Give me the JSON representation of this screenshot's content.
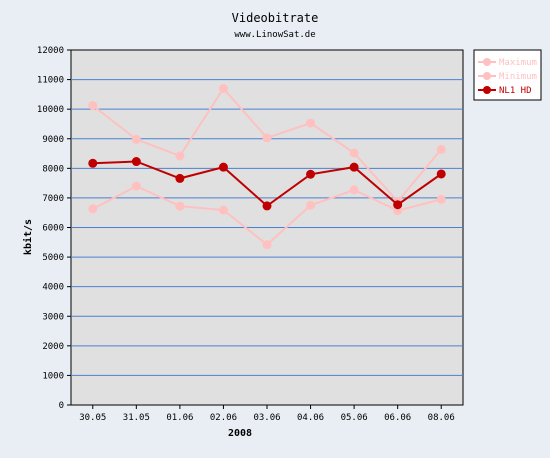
{
  "chart_data": {
    "type": "line",
    "title": "Videobitrate",
    "subtitle": "www.LinowSat.de",
    "xlabel": "2008",
    "ylabel": "kbit/s",
    "categories": [
      "30.05",
      "31.05",
      "01.06",
      "02.06",
      "03.06",
      "04.06",
      "05.06",
      "06.06",
      "08.06"
    ],
    "ylim": [
      0,
      12000
    ],
    "yticks": [
      "0",
      "1000",
      "2000",
      "3000",
      "4000",
      "5000",
      "6000",
      "7000",
      "8000",
      "9000",
      "10000",
      "11000",
      "12000"
    ],
    "grid": "horizontal",
    "legend_position": "top-right",
    "series": [
      {
        "name": "Maximum",
        "color": "#ffc0c0",
        "values": [
          10120,
          8980,
          8420,
          10700,
          9030,
          9530,
          8520,
          6880,
          8640
        ]
      },
      {
        "name": "Minimum",
        "color": "#ffc0c0",
        "values": [
          6630,
          7400,
          6720,
          6590,
          5420,
          6750,
          7270,
          6570,
          6950
        ]
      },
      {
        "name": "NL1 HD",
        "color": "#c00000",
        "values": [
          8170,
          8230,
          7660,
          8040,
          6730,
          7800,
          8040,
          6770,
          7810
        ]
      }
    ],
    "colors": {
      "plot_background": "#e0e0e0",
      "gridline": "#4a80d0",
      "page_background": "#e8eef4"
    }
  }
}
